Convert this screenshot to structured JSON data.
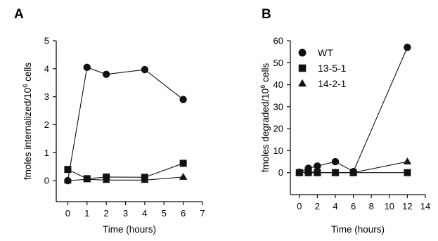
{
  "chart_data": [
    {
      "panel": "A",
      "type": "line",
      "xlabel": "Time (hours)",
      "ylabel": "fmoles internalized/10^6 cells",
      "ylabel_base": "fmoles internalized/10",
      "ylabel_sup": "6",
      "ylabel_tail": " cells",
      "xlim": [
        -0.6,
        7
      ],
      "ylim": [
        -0.75,
        5
      ],
      "xticks": [
        0,
        1,
        2,
        3,
        4,
        5,
        6,
        7
      ],
      "yticks": [
        0,
        1,
        2,
        3,
        4,
        5
      ],
      "grid": false,
      "series": [
        {
          "name": "WT",
          "marker": "circle",
          "x": [
            0,
            1,
            2,
            4,
            6
          ],
          "y": [
            0.0,
            4.05,
            3.8,
            3.97,
            2.9
          ]
        },
        {
          "name": "13-5-1",
          "marker": "square",
          "x": [
            0,
            1,
            2,
            4,
            6
          ],
          "y": [
            0.4,
            0.07,
            0.13,
            0.12,
            0.62
          ]
        },
        {
          "name": "14-2-1",
          "marker": "triangle",
          "x": [
            0,
            1,
            2,
            4,
            6
          ],
          "y": [
            0.0,
            0.05,
            0.02,
            0.02,
            0.13
          ]
        }
      ]
    },
    {
      "panel": "B",
      "type": "line",
      "xlabel": "Time (hours)",
      "ylabel": "fmoles degraded/10^6 cells",
      "ylabel_base": "fmoles degraded/10",
      "ylabel_sup": "6",
      "ylabel_tail": " cells",
      "xlim": [
        -1,
        14
      ],
      "ylim": [
        -10,
        60
      ],
      "xticks": [
        0,
        2,
        4,
        6,
        8,
        10,
        12,
        14
      ],
      "yticks": [
        0,
        10,
        20,
        30,
        40,
        50,
        60
      ],
      "grid": false,
      "legend": "top-left",
      "series": [
        {
          "name": "WT",
          "marker": "circle",
          "x": [
            0,
            1,
            2,
            4,
            6,
            12
          ],
          "y": [
            0.2,
            2.0,
            3.0,
            5.0,
            0.5,
            57.0
          ]
        },
        {
          "name": "13-5-1",
          "marker": "square",
          "x": [
            0,
            1,
            2,
            4,
            6,
            12
          ],
          "y": [
            0.0,
            0.0,
            0.0,
            0.0,
            0.0,
            0.0
          ]
        },
        {
          "name": "14-2-1",
          "marker": "triangle",
          "x": [
            0,
            1,
            2,
            4,
            6,
            12
          ],
          "y": [
            0.0,
            0.5,
            0.0,
            0.0,
            0.0,
            5.0
          ]
        }
      ]
    }
  ]
}
